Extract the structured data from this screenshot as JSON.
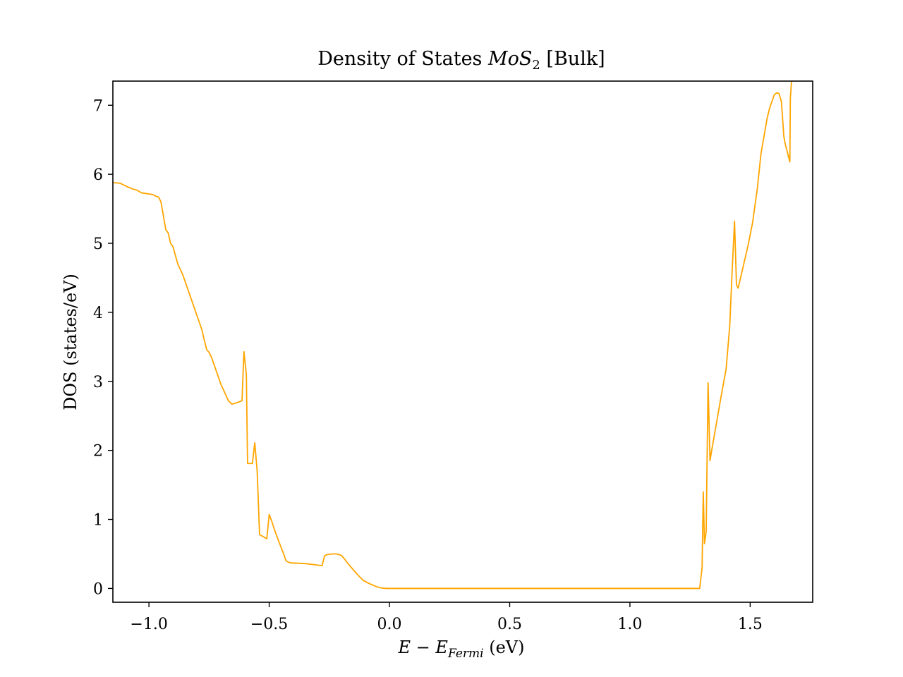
{
  "chart_data": {
    "type": "line",
    "title": {
      "prefix": "Density of States ",
      "formula_main": "MoS",
      "formula_sub": "2",
      "suffix": " [Bulk]"
    },
    "xlabel": {
      "e": "E",
      "minus": " − ",
      "ef": "E",
      "ef_sub": "Fermi",
      "unit": " (eV)"
    },
    "ylabel": "DOS (states/eV)",
    "xlim": [
      -1.15,
      1.76
    ],
    "ylim": [
      -0.2,
      7.35
    ],
    "x_ticks": [
      -1.0,
      -0.5,
      0.0,
      0.5,
      1.0,
      1.5
    ],
    "x_tick_labels": [
      "−1.0",
      "−0.5",
      "0.0",
      "0.5",
      "1.0",
      "1.5"
    ],
    "y_ticks": [
      0,
      1,
      2,
      3,
      4,
      5,
      6,
      7
    ],
    "y_tick_labels": [
      "0",
      "1",
      "2",
      "3",
      "4",
      "5",
      "6",
      "7"
    ],
    "grid": false,
    "legend": "none",
    "series": [
      {
        "color": "#ffa500",
        "x": [
          -1.15,
          -1.12,
          -1.09,
          -1.07,
          -1.05,
          -1.03,
          -0.99,
          -0.98,
          -0.97,
          -0.96,
          -0.95,
          -0.94,
          -0.93,
          -0.92,
          -0.91,
          -0.9,
          -0.88,
          -0.86,
          -0.84,
          -0.82,
          -0.8,
          -0.78,
          -0.77,
          -0.76,
          -0.75,
          -0.74,
          -0.72,
          -0.7,
          -0.68,
          -0.67,
          -0.655,
          -0.635,
          -0.62,
          -0.613,
          -0.605,
          -0.595,
          -0.59,
          -0.58,
          -0.57,
          -0.56,
          -0.55,
          -0.54,
          -0.53,
          -0.52,
          -0.51,
          -0.5,
          -0.49,
          -0.48,
          -0.46,
          -0.44,
          -0.43,
          -0.42,
          -0.41,
          -0.35,
          -0.28,
          -0.27,
          -0.26,
          -0.24,
          -0.22,
          -0.21,
          -0.2,
          -0.19,
          -0.17,
          -0.15,
          -0.13,
          -0.11,
          -0.09,
          -0.07,
          -0.05,
          -0.03,
          -0.01,
          0.0,
          0.3,
          0.6,
          0.9,
          1.2,
          1.29,
          1.3,
          1.305,
          1.31,
          1.317,
          1.325,
          1.333,
          1.34,
          1.36,
          1.38,
          1.4,
          1.415,
          1.425,
          1.435,
          1.443,
          1.45,
          1.47,
          1.49,
          1.51,
          1.53,
          1.545,
          1.56,
          1.57,
          1.58,
          1.59,
          1.6,
          1.61,
          1.62,
          1.63,
          1.64,
          1.645,
          1.665,
          1.667,
          1.672
        ],
        "y": [
          5.88,
          5.87,
          5.82,
          5.79,
          5.77,
          5.73,
          5.71,
          5.7,
          5.68,
          5.67,
          5.6,
          5.4,
          5.2,
          5.15,
          5.0,
          4.95,
          4.7,
          4.55,
          4.35,
          4.15,
          3.95,
          3.75,
          3.6,
          3.46,
          3.42,
          3.35,
          3.15,
          2.95,
          2.8,
          2.72,
          2.67,
          2.69,
          2.71,
          2.72,
          3.43,
          3.1,
          1.81,
          1.81,
          1.81,
          2.11,
          1.7,
          0.78,
          0.76,
          0.74,
          0.72,
          1.07,
          0.98,
          0.87,
          0.68,
          0.5,
          0.4,
          0.38,
          0.37,
          0.36,
          0.33,
          0.47,
          0.49,
          0.5,
          0.5,
          0.49,
          0.48,
          0.44,
          0.35,
          0.27,
          0.19,
          0.12,
          0.08,
          0.05,
          0.02,
          0.005,
          0.0,
          0.0,
          0.0,
          0.0,
          0.0,
          0.0,
          0.0,
          0.3,
          1.4,
          0.65,
          0.82,
          2.98,
          1.85,
          2.0,
          2.4,
          2.8,
          3.18,
          3.8,
          4.6,
          5.32,
          4.4,
          4.35,
          4.65,
          4.95,
          5.3,
          5.8,
          6.3,
          6.6,
          6.8,
          6.95,
          7.05,
          7.15,
          7.18,
          7.17,
          7.05,
          6.55,
          6.45,
          6.18,
          7.1,
          7.35
        ]
      }
    ]
  }
}
